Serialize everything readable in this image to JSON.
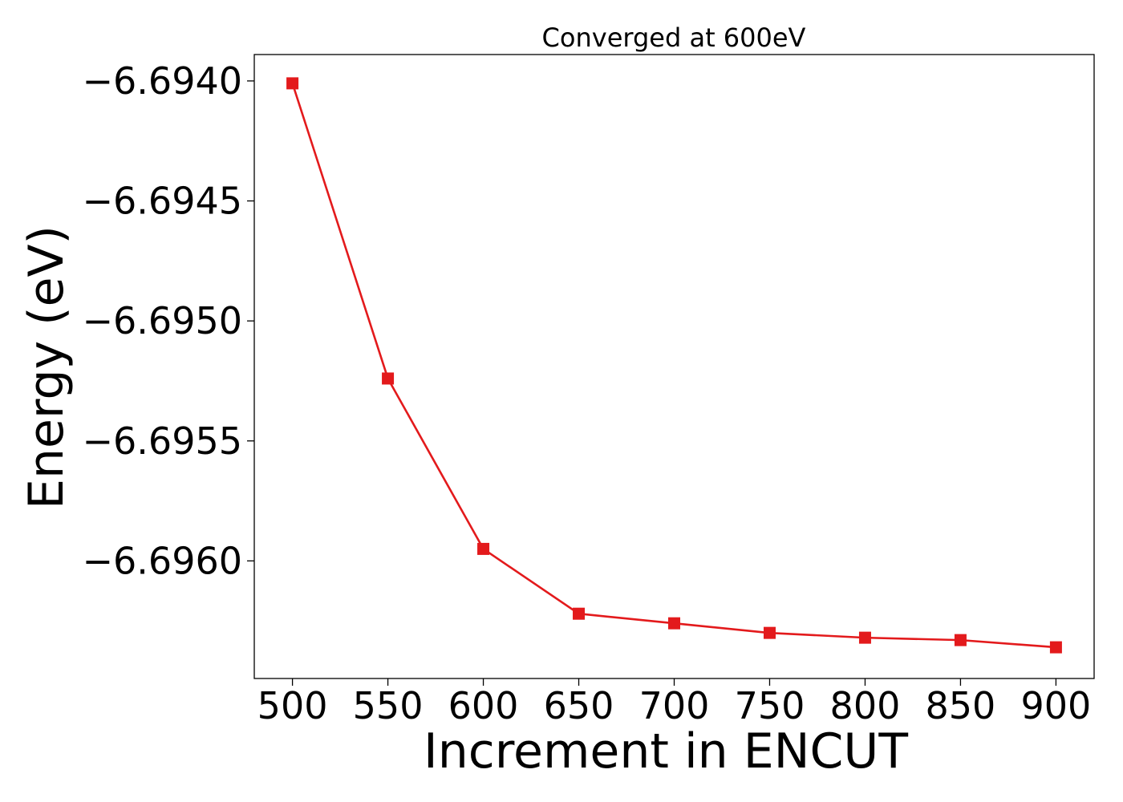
{
  "chart_data": {
    "type": "line",
    "title": "Converged at 600eV",
    "xlabel": "Increment in ENCUT",
    "ylabel": "Energy (eV)",
    "x": [
      500,
      550,
      600,
      650,
      700,
      750,
      800,
      850,
      900
    ],
    "series": [
      {
        "values": [
          -6.69401,
          -6.69524,
          -6.69595,
          -6.69622,
          -6.69626,
          -6.6963,
          -6.69632,
          -6.69633,
          -6.69636
        ],
        "color": "#e31a1c",
        "marker": "square"
      }
    ],
    "xticks": [
      500,
      550,
      600,
      650,
      700,
      750,
      800,
      850,
      900
    ],
    "xtick_labels": [
      "500",
      "550",
      "600",
      "650",
      "700",
      "750",
      "800",
      "850",
      "900"
    ],
    "yticks": [
      -6.694,
      -6.6945,
      -6.695,
      -6.6955,
      -6.696
    ],
    "ytick_labels": [
      "−6.6940",
      "−6.6945",
      "−6.6950",
      "−6.6955",
      "−6.6960"
    ],
    "xlim": [
      480,
      920
    ],
    "ylim": [
      -6.69649,
      -6.69389
    ],
    "grid": false,
    "legend": "none"
  }
}
